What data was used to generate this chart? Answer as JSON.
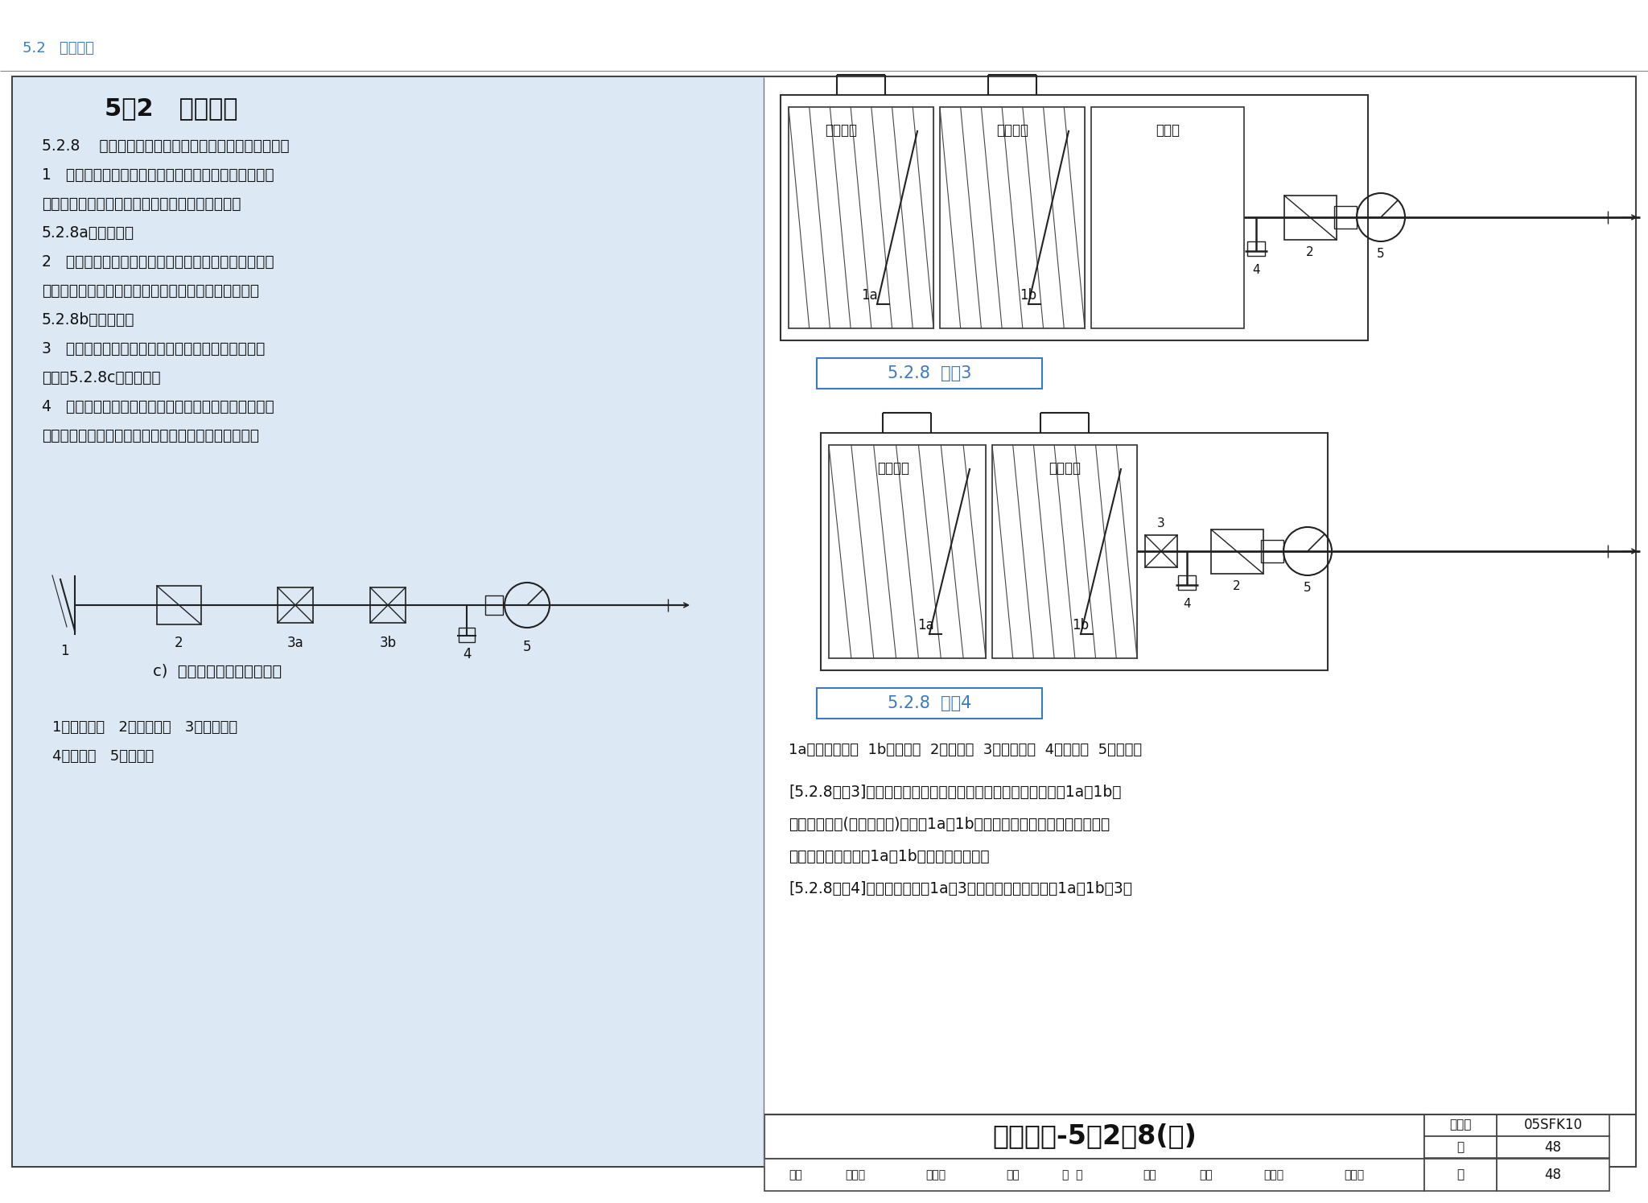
{
  "page_bg": "#ffffff",
  "left_panel_bg": "#dce9f5",
  "header_color": "#3a7abf",
  "header_text": "5.2   防护通风",
  "body_title": "5.2   防护通风",
  "diagram_label_color": "#3a7abf",
  "footer_title": "防护通风-5．2．8(续)",
  "footer_right": "05SFK10",
  "footer_page": "48",
  "body_text": [
    "5.2.8    防空地下室的战时进风系统，应符合下列要求：",
    "1   设有清洁、滤毒、隔绍三种防护通风方式，且清洁进",
    "风、滤毒进风合用进风机时，进风系统应按原理图",
    "5.2.8a进行设计；",
    "2   设有清洁、滤毒、隔绍三种防护通风方式，且清洁进",
    "风、滤毒进风分别设置进风机时，进风系统应按原理图",
    "5.2.8b进行设计；",
    "3   设有清洁、隔绍两种防护通风方式，进风系统应按",
    "原理图5.2.8c进行设计；",
    "4   滤毒通风进风管路上选用的通风设备，必须确保滤毒",
    "进风量不超过该管路上设置的过滤吸收器的额定风量。"
  ],
  "diagram_c_label": "c)  只设清洁通风的进风系统",
  "legend_left": [
    "1－消波设施   2－粗过滤器   3－密闭阀门",
    "4－插板阀   5－通风机"
  ],
  "diag3_label": "5.2.8  图示3",
  "diag4_label": "5.2.8  图示4",
  "legend_right": "1a－防护密闭门  1b－密闭门  2－粗滤器  3－密闭阀门  4－插板阀  5－通风机",
  "explain_lines": [
    "[5.2.8图示3]可用于防空地下室物资库进风系统。清洁通风打开1a、1b进",
    "风，紧急情况(敌人空袭时)下关闭1a、1b达到隔绍防护的要求。在战争阶段",
    "利用有利时机，打开1a、1b进行清洁式通风。",
    "[5.2.8图示4]，清洁通风打开1a、3进风，隔绍防护时关闭1a、1b和3。"
  ],
  "footer_sig": "审核  耿世彬  韧世彬  校对  竟  勇  龙多  设计  马吉民  马吉民"
}
